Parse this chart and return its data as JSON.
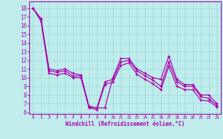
{
  "xlabel": "Windchill (Refroidissement éolien,°C)",
  "bg_color": "#c0ecec",
  "grid_color": "#96d8d8",
  "line_color": "#aa00aa",
  "xlim": [
    -0.5,
    23.5
  ],
  "ylim": [
    5.8,
    18.8
  ],
  "xticks": [
    0,
    1,
    2,
    3,
    4,
    5,
    6,
    7,
    8,
    9,
    10,
    11,
    12,
    13,
    14,
    15,
    16,
    17,
    18,
    19,
    20,
    21,
    22,
    23
  ],
  "yticks": [
    6,
    7,
    8,
    9,
    10,
    11,
    12,
    13,
    14,
    15,
    16,
    17,
    18
  ],
  "line1_x": [
    0,
    1,
    2,
    3,
    4,
    5,
    6,
    7,
    8,
    9,
    10,
    11,
    12,
    13,
    14,
    15,
    16,
    17,
    18,
    19,
    20,
    21,
    22,
    23
  ],
  "line1_y": [
    18.0,
    16.8,
    11.0,
    10.8,
    11.0,
    10.5,
    10.3,
    6.7,
    6.5,
    6.5,
    10.0,
    12.2,
    12.2,
    11.0,
    10.5,
    10.0,
    9.8,
    12.5,
    9.8,
    9.2,
    9.2,
    8.0,
    8.0,
    7.0
  ],
  "line2_x": [
    0,
    1,
    2,
    3,
    4,
    5,
    6,
    7,
    8,
    9,
    10,
    11,
    12,
    13,
    14,
    15,
    16,
    17,
    18,
    19,
    20,
    21,
    22,
    23
  ],
  "line2_y": [
    18.0,
    16.8,
    10.8,
    10.6,
    10.8,
    10.2,
    10.2,
    6.6,
    6.5,
    9.5,
    9.8,
    11.8,
    12.0,
    10.8,
    10.2,
    9.7,
    9.0,
    11.8,
    9.5,
    9.0,
    9.0,
    7.8,
    7.6,
    6.8
  ],
  "line3_x": [
    0,
    1,
    2,
    3,
    4,
    5,
    6,
    7,
    8,
    9,
    10,
    11,
    12,
    13,
    14,
    15,
    16,
    17,
    18,
    19,
    20,
    21,
    22,
    23
  ],
  "line3_y": [
    18.0,
    16.5,
    10.5,
    10.3,
    10.5,
    10.0,
    10.0,
    6.5,
    6.3,
    9.2,
    9.5,
    11.4,
    11.7,
    10.4,
    9.8,
    9.3,
    8.6,
    11.3,
    9.0,
    8.6,
    8.6,
    7.4,
    7.3,
    6.6
  ]
}
